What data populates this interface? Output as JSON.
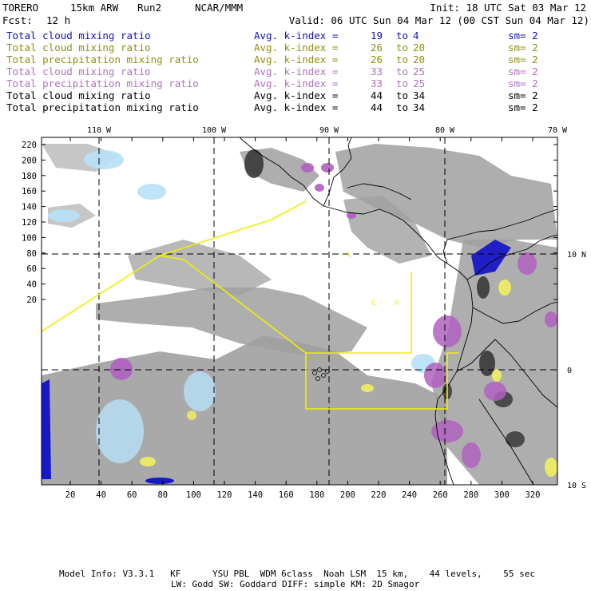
{
  "header": {
    "model": "TORERO",
    "resolution": "15km ARW",
    "run": "Run2",
    "org": "NCAR/MMM",
    "init": "Init: 18 UTC Sat 03 Mar 12",
    "fcst_label": "Fcst:",
    "fcst_value": "12 h",
    "valid": "Valid: 06 UTC Sun 04 Mar 12 (00 CST Sun 04 Mar 12)"
  },
  "legend": [
    {
      "field": "Total cloud mixing ratio",
      "kindex": "Avg. k-index =",
      "from": "19",
      "to_word": "to",
      "to": "4",
      "sm": "sm= 2",
      "color": "#1010c0"
    },
    {
      "field": "Total cloud mixing ratio",
      "kindex": "Avg. k-index =",
      "from": "26",
      "to_word": "to",
      "to": "20",
      "sm": "sm= 2",
      "color": "#909010"
    },
    {
      "field": "Total precipitation mixing ratio",
      "kindex": "Avg. k-index =",
      "from": "26",
      "to_word": "to",
      "to": "20",
      "sm": "sm= 2",
      "color": "#909010"
    },
    {
      "field": "Total cloud mixing ratio",
      "kindex": "Avg. k-index =",
      "from": "33",
      "to_word": "to",
      "to": "25",
      "sm": "sm= 2",
      "color": "#b070c0"
    },
    {
      "field": "Total precipitation mixing ratio",
      "kindex": "Avg. k-index =",
      "from": "33",
      "to_word": "to",
      "to": "25",
      "sm": "sm= 2",
      "color": "#b070c0"
    },
    {
      "field": "Total cloud mixing ratio",
      "kindex": "Avg. k-index =",
      "from": "44",
      "to_word": "to",
      "to": "34",
      "sm": "sm= 2",
      "color": "#000000"
    },
    {
      "field": "Total precipitation mixing ratio",
      "kindex": "Avg. k-index =",
      "from": "44",
      "to_word": "to",
      "to": "34",
      "sm": "sm= 2",
      "color": "#000000"
    }
  ],
  "axes": {
    "top_lon": [
      "110 W",
      "100 W",
      "90 W",
      "80 W",
      "70 W"
    ],
    "right_lat": [
      "10 N",
      "0",
      "10 S"
    ],
    "left_ticks": [
      "220",
      "200",
      "180",
      "160",
      "140",
      "120",
      "100",
      "80",
      "60",
      "40",
      "20"
    ],
    "bottom_ticks": [
      "20",
      "40",
      "60",
      "80",
      "100",
      "120",
      "140",
      "160",
      "180",
      "200",
      "220",
      "240",
      "260",
      "280",
      "300",
      "320"
    ]
  },
  "map_labels": [
    "C",
    "R"
  ],
  "colors": {
    "gray": "#a0a0a0",
    "dark": "#383838",
    "blue": "#1010c8",
    "lightblue": "#b8e0f8",
    "purple": "#b060c0",
    "yellow": "#f0f060",
    "boundary": "#f0f000"
  },
  "footer": {
    "line1": "Model Info: V3.3.1   KF      YSU PBL  WDM 6class  Noah LSM  15 km,    44 levels,    55 sec",
    "line2": "LW: Godd SW: Goddard DIFF: simple KM: 2D Smagor"
  }
}
